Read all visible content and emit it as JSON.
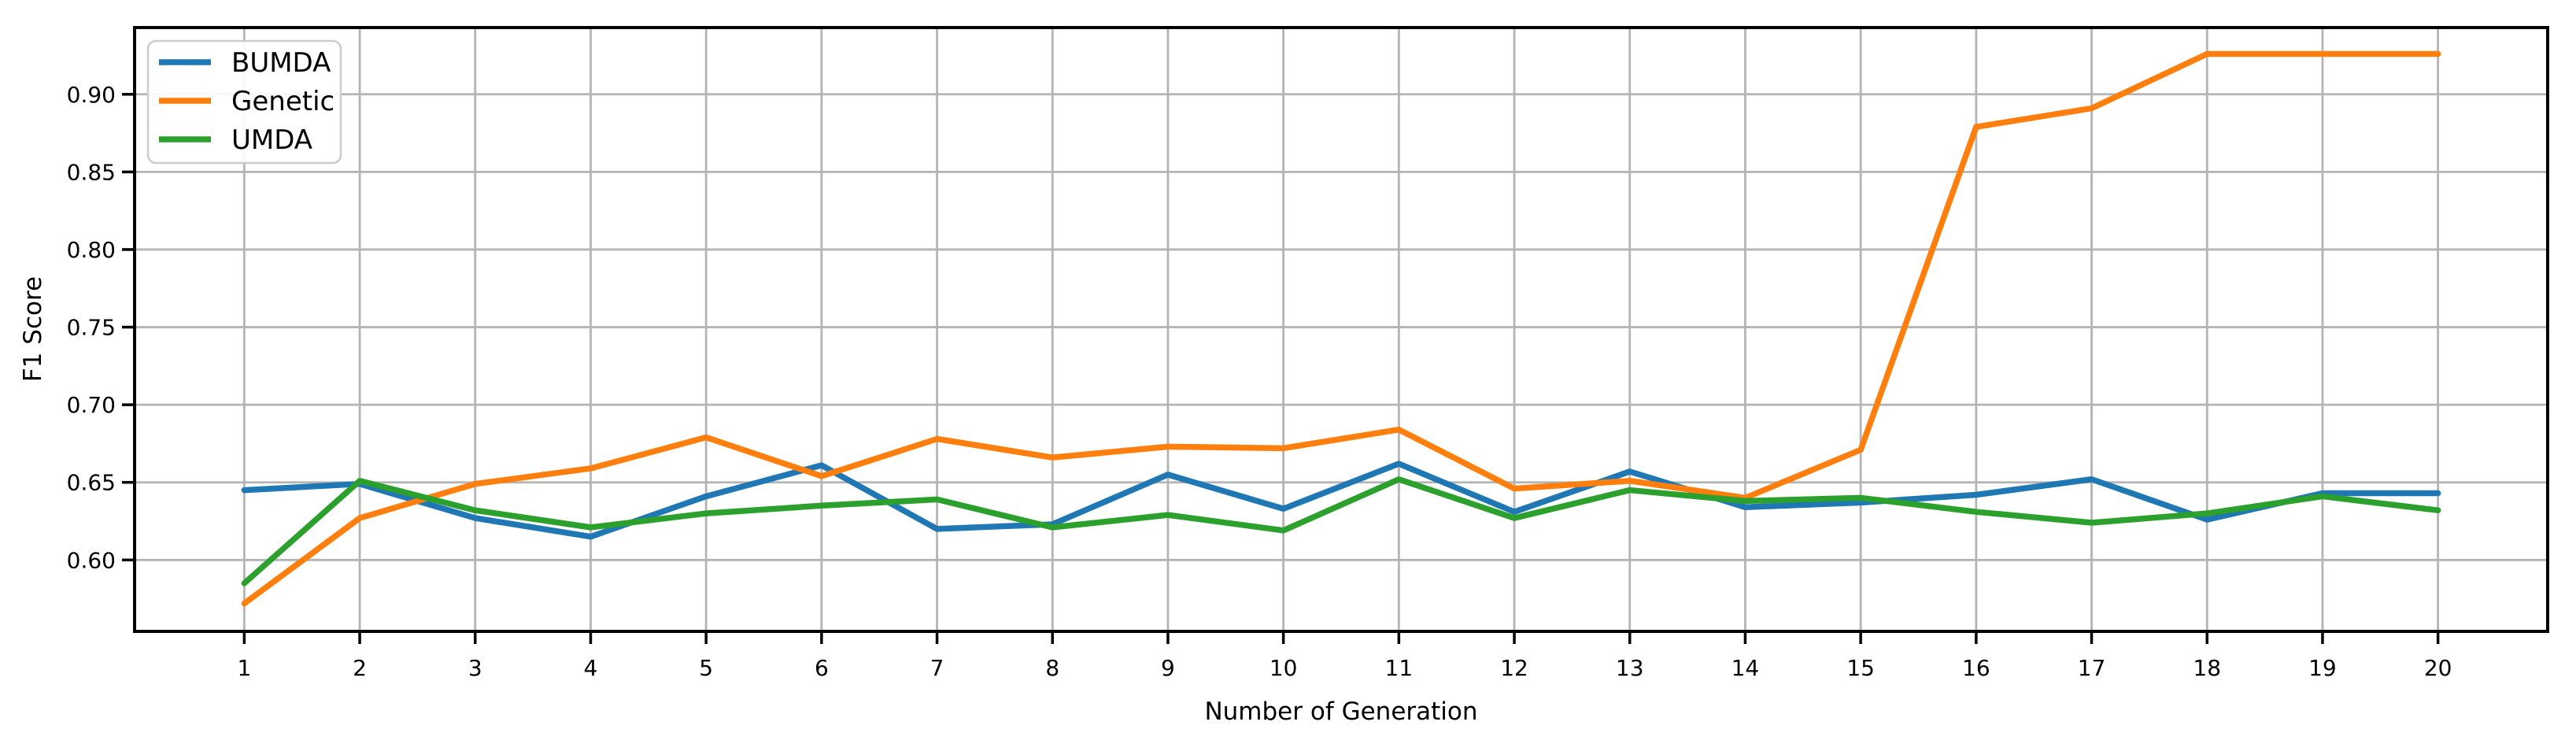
{
  "figure": {
    "background_color": "#ffffff",
    "grid_color": "#b4b4b4",
    "spine_color": "#000000",
    "legend_border_color": "#cccccc",
    "legend_background_color": "#ffffff"
  },
  "chart_data": {
    "type": "line",
    "title": "",
    "xlabel": "Number of Generation",
    "ylabel": "F1 Score",
    "x": [
      1,
      2,
      3,
      4,
      5,
      6,
      7,
      8,
      9,
      10,
      11,
      12,
      13,
      14,
      15,
      16,
      17,
      18,
      19,
      20
    ],
    "series": [
      {
        "name": "BUMDA",
        "color": "#1f77b4",
        "values": [
          0.645,
          0.649,
          0.627,
          0.615,
          0.641,
          0.661,
          0.62,
          0.623,
          0.655,
          0.633,
          0.662,
          0.631,
          0.657,
          0.634,
          0.637,
          0.642,
          0.652,
          0.626,
          0.643,
          0.643
        ]
      },
      {
        "name": "Genetic",
        "color": "#ff7f0e",
        "values": [
          0.572,
          0.627,
          0.649,
          0.659,
          0.679,
          0.654,
          0.678,
          0.666,
          0.673,
          0.672,
          0.684,
          0.646,
          0.651,
          0.64,
          0.671,
          0.879,
          0.891,
          0.926,
          0.926,
          0.926
        ]
      },
      {
        "name": "UMDA",
        "color": "#2ca02c",
        "values": [
          0.585,
          0.651,
          0.632,
          0.621,
          0.63,
          0.635,
          0.639,
          0.621,
          0.629,
          0.619,
          0.652,
          0.627,
          0.645,
          0.638,
          0.64,
          0.631,
          0.624,
          0.63,
          0.641,
          0.632
        ]
      }
    ],
    "xticks": [
      1,
      2,
      3,
      4,
      5,
      6,
      7,
      8,
      9,
      10,
      11,
      12,
      13,
      14,
      15,
      16,
      17,
      18,
      19,
      20
    ],
    "xtick_labels": [
      "1",
      "2",
      "3",
      "4",
      "5",
      "6",
      "7",
      "8",
      "9",
      "10",
      "11",
      "12",
      "13",
      "14",
      "15",
      "16",
      "17",
      "18",
      "19",
      "20"
    ],
    "yticks": [
      0.6,
      0.65,
      0.7,
      0.75,
      0.8,
      0.85,
      0.9
    ],
    "ytick_labels": [
      "0.60",
      "0.65",
      "0.70",
      "0.75",
      "0.80",
      "0.85",
      "0.90"
    ],
    "xlim": [
      0.05,
      20.95
    ],
    "ylim": [
      0.554,
      0.943
    ],
    "grid": true,
    "legend_position": "upper-left"
  }
}
